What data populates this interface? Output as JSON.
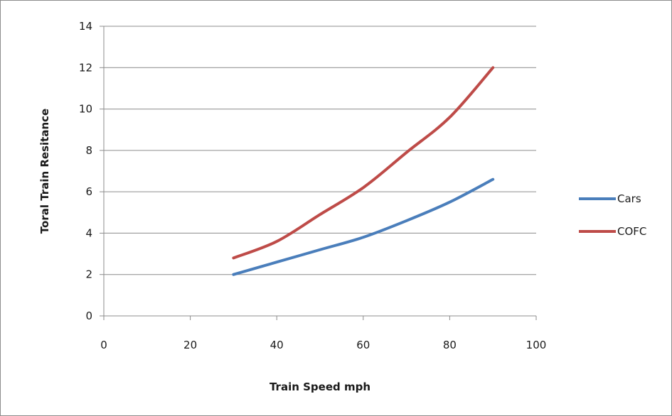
{
  "chart_data": {
    "type": "line",
    "title": "",
    "xlabel": "Train Speed mph",
    "ylabel": "Toral Train Resitance",
    "xlim": [
      0,
      100
    ],
    "ylim": [
      0,
      14
    ],
    "x_ticks": [
      0,
      20,
      40,
      60,
      80,
      100
    ],
    "y_ticks": [
      0,
      2,
      4,
      6,
      8,
      10,
      12,
      14
    ],
    "grid": "horizontal",
    "legend_position": "right",
    "series": [
      {
        "name": "Cars",
        "color": "#4a7ebb",
        "x": [
          30,
          40,
          50,
          60,
          70,
          80,
          90
        ],
        "values": [
          2.0,
          2.6,
          3.2,
          3.8,
          4.6,
          5.5,
          6.6
        ]
      },
      {
        "name": "COFC",
        "color": "#be4b48",
        "x": [
          30,
          40,
          50,
          60,
          70,
          80,
          90
        ],
        "values": [
          2.8,
          3.6,
          4.9,
          6.2,
          7.9,
          9.6,
          12.0
        ]
      }
    ]
  }
}
